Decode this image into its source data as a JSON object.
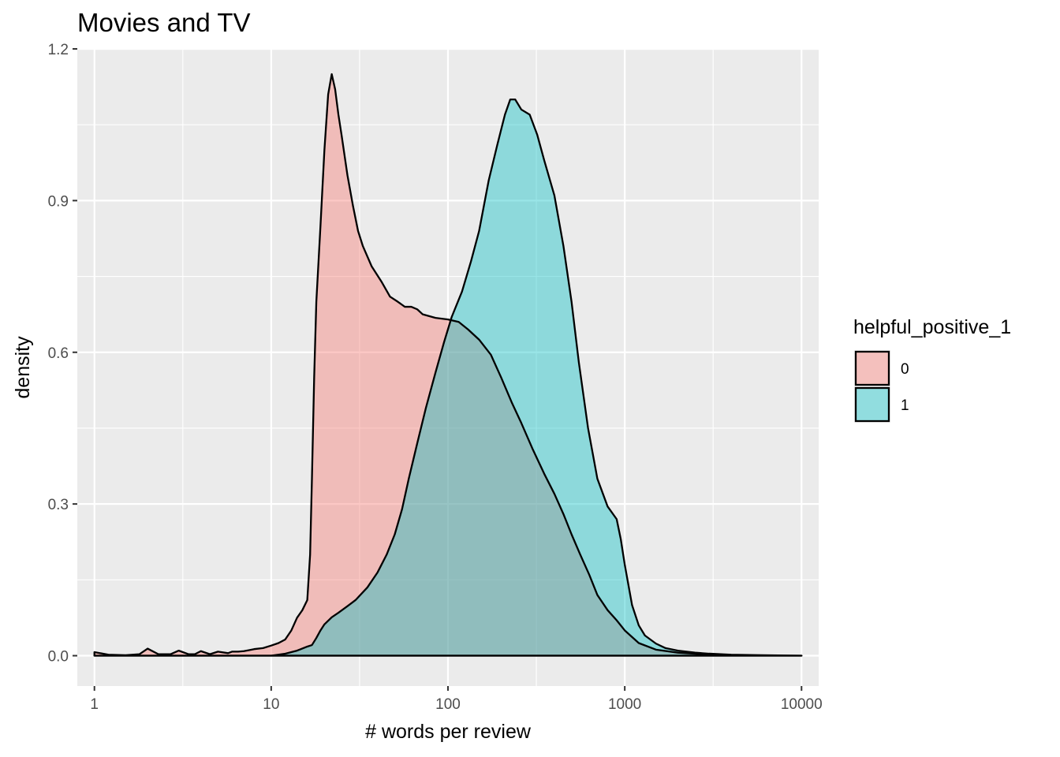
{
  "chart_data": {
    "type": "area",
    "title": "Movies and TV",
    "xlabel": "# words per review",
    "ylabel": "density",
    "x_scale": "log10",
    "xlim": [
      0.8,
      12500
    ],
    "ylim": [
      -0.06,
      1.2
    ],
    "x_ticks": [
      1,
      10,
      100,
      1000,
      10000
    ],
    "x_tick_labels": [
      "1",
      "10",
      "100",
      "1000",
      "10000"
    ],
    "y_ticks": [
      0,
      0.3,
      0.6,
      0.9,
      1.2
    ],
    "y_tick_labels": [
      "0.0",
      "0.3",
      "0.6",
      "0.9",
      "1.2"
    ],
    "grid": true,
    "legend_position": "right",
    "legend_title": "helpful_positive_1",
    "series": [
      {
        "name": "0",
        "color": "#F8766D",
        "points": [
          [
            1,
            0.007
          ],
          [
            1.2,
            0.002
          ],
          [
            1.5,
            0.001
          ],
          [
            1.8,
            0.003
          ],
          [
            2,
            0.014
          ],
          [
            2.3,
            0.003
          ],
          [
            2.7,
            0.003
          ],
          [
            3,
            0.01
          ],
          [
            3.4,
            0.003
          ],
          [
            3.7,
            0.003
          ],
          [
            4,
            0.009
          ],
          [
            4.5,
            0.003
          ],
          [
            5,
            0.008
          ],
          [
            5.7,
            0.005
          ],
          [
            6,
            0.008
          ],
          [
            6.5,
            0.008
          ],
          [
            7,
            0.009
          ],
          [
            7.5,
            0.011
          ],
          [
            8,
            0.013
          ],
          [
            9,
            0.015
          ],
          [
            10,
            0.02
          ],
          [
            11,
            0.025
          ],
          [
            12,
            0.032
          ],
          [
            13,
            0.05
          ],
          [
            14,
            0.075
          ],
          [
            15,
            0.09
          ],
          [
            16,
            0.11
          ],
          [
            16.6,
            0.2
          ],
          [
            17,
            0.35
          ],
          [
            17.5,
            0.55
          ],
          [
            18,
            0.7
          ],
          [
            19,
            0.85
          ],
          [
            20,
            1.0
          ],
          [
            21,
            1.11
          ],
          [
            22,
            1.15
          ],
          [
            23,
            1.12
          ],
          [
            24,
            1.07
          ],
          [
            25,
            1.03
          ],
          [
            27,
            0.95
          ],
          [
            29,
            0.89
          ],
          [
            31,
            0.84
          ],
          [
            33,
            0.81
          ],
          [
            37,
            0.77
          ],
          [
            42,
            0.74
          ],
          [
            47,
            0.71
          ],
          [
            52,
            0.7
          ],
          [
            57,
            0.69
          ],
          [
            62,
            0.69
          ],
          [
            67,
            0.685
          ],
          [
            72,
            0.675
          ],
          [
            85,
            0.668
          ],
          [
            100,
            0.665
          ],
          [
            115,
            0.66
          ],
          [
            130,
            0.645
          ],
          [
            150,
            0.625
          ],
          [
            175,
            0.595
          ],
          [
            200,
            0.55
          ],
          [
            230,
            0.5
          ],
          [
            260,
            0.46
          ],
          [
            300,
            0.41
          ],
          [
            350,
            0.36
          ],
          [
            400,
            0.32
          ],
          [
            450,
            0.28
          ],
          [
            500,
            0.24
          ],
          [
            560,
            0.2
          ],
          [
            630,
            0.16
          ],
          [
            700,
            0.12
          ],
          [
            800,
            0.09
          ],
          [
            900,
            0.07
          ],
          [
            1000,
            0.05
          ],
          [
            1200,
            0.025
          ],
          [
            1500,
            0.012
          ],
          [
            2000,
            0.006
          ],
          [
            3000,
            0.002
          ],
          [
            5000,
            0.0
          ],
          [
            10000,
            0.0
          ]
        ]
      },
      {
        "name": "1",
        "color": "#00BFC4",
        "points": [
          [
            1,
            0.0
          ],
          [
            5,
            0.0
          ],
          [
            10,
            0.0
          ],
          [
            12,
            0.004
          ],
          [
            14,
            0.01
          ],
          [
            16,
            0.018
          ],
          [
            17,
            0.021
          ],
          [
            18,
            0.035
          ],
          [
            19,
            0.05
          ],
          [
            20,
            0.062
          ],
          [
            22,
            0.076
          ],
          [
            24,
            0.085
          ],
          [
            27,
            0.098
          ],
          [
            30,
            0.11
          ],
          [
            35,
            0.135
          ],
          [
            40,
            0.165
          ],
          [
            45,
            0.2
          ],
          [
            50,
            0.24
          ],
          [
            55,
            0.29
          ],
          [
            60,
            0.35
          ],
          [
            67,
            0.42
          ],
          [
            75,
            0.49
          ],
          [
            85,
            0.56
          ],
          [
            95,
            0.62
          ],
          [
            105,
            0.67
          ],
          [
            120,
            0.72
          ],
          [
            135,
            0.78
          ],
          [
            150,
            0.84
          ],
          [
            170,
            0.94
          ],
          [
            190,
            1.01
          ],
          [
            210,
            1.07
          ],
          [
            225,
            1.1
          ],
          [
            240,
            1.1
          ],
          [
            260,
            1.08
          ],
          [
            290,
            1.07
          ],
          [
            320,
            1.03
          ],
          [
            350,
            0.98
          ],
          [
            400,
            0.91
          ],
          [
            450,
            0.81
          ],
          [
            500,
            0.7
          ],
          [
            550,
            0.58
          ],
          [
            620,
            0.45
          ],
          [
            700,
            0.35
          ],
          [
            800,
            0.295
          ],
          [
            900,
            0.27
          ],
          [
            950,
            0.23
          ],
          [
            1000,
            0.18
          ],
          [
            1100,
            0.1
          ],
          [
            1200,
            0.06
          ],
          [
            1300,
            0.04
          ],
          [
            1500,
            0.024
          ],
          [
            1700,
            0.015
          ],
          [
            2000,
            0.01
          ],
          [
            2500,
            0.006
          ],
          [
            3000,
            0.004
          ],
          [
            4000,
            0.002
          ],
          [
            6000,
            0.001
          ],
          [
            10000,
            0.0
          ]
        ]
      }
    ]
  }
}
